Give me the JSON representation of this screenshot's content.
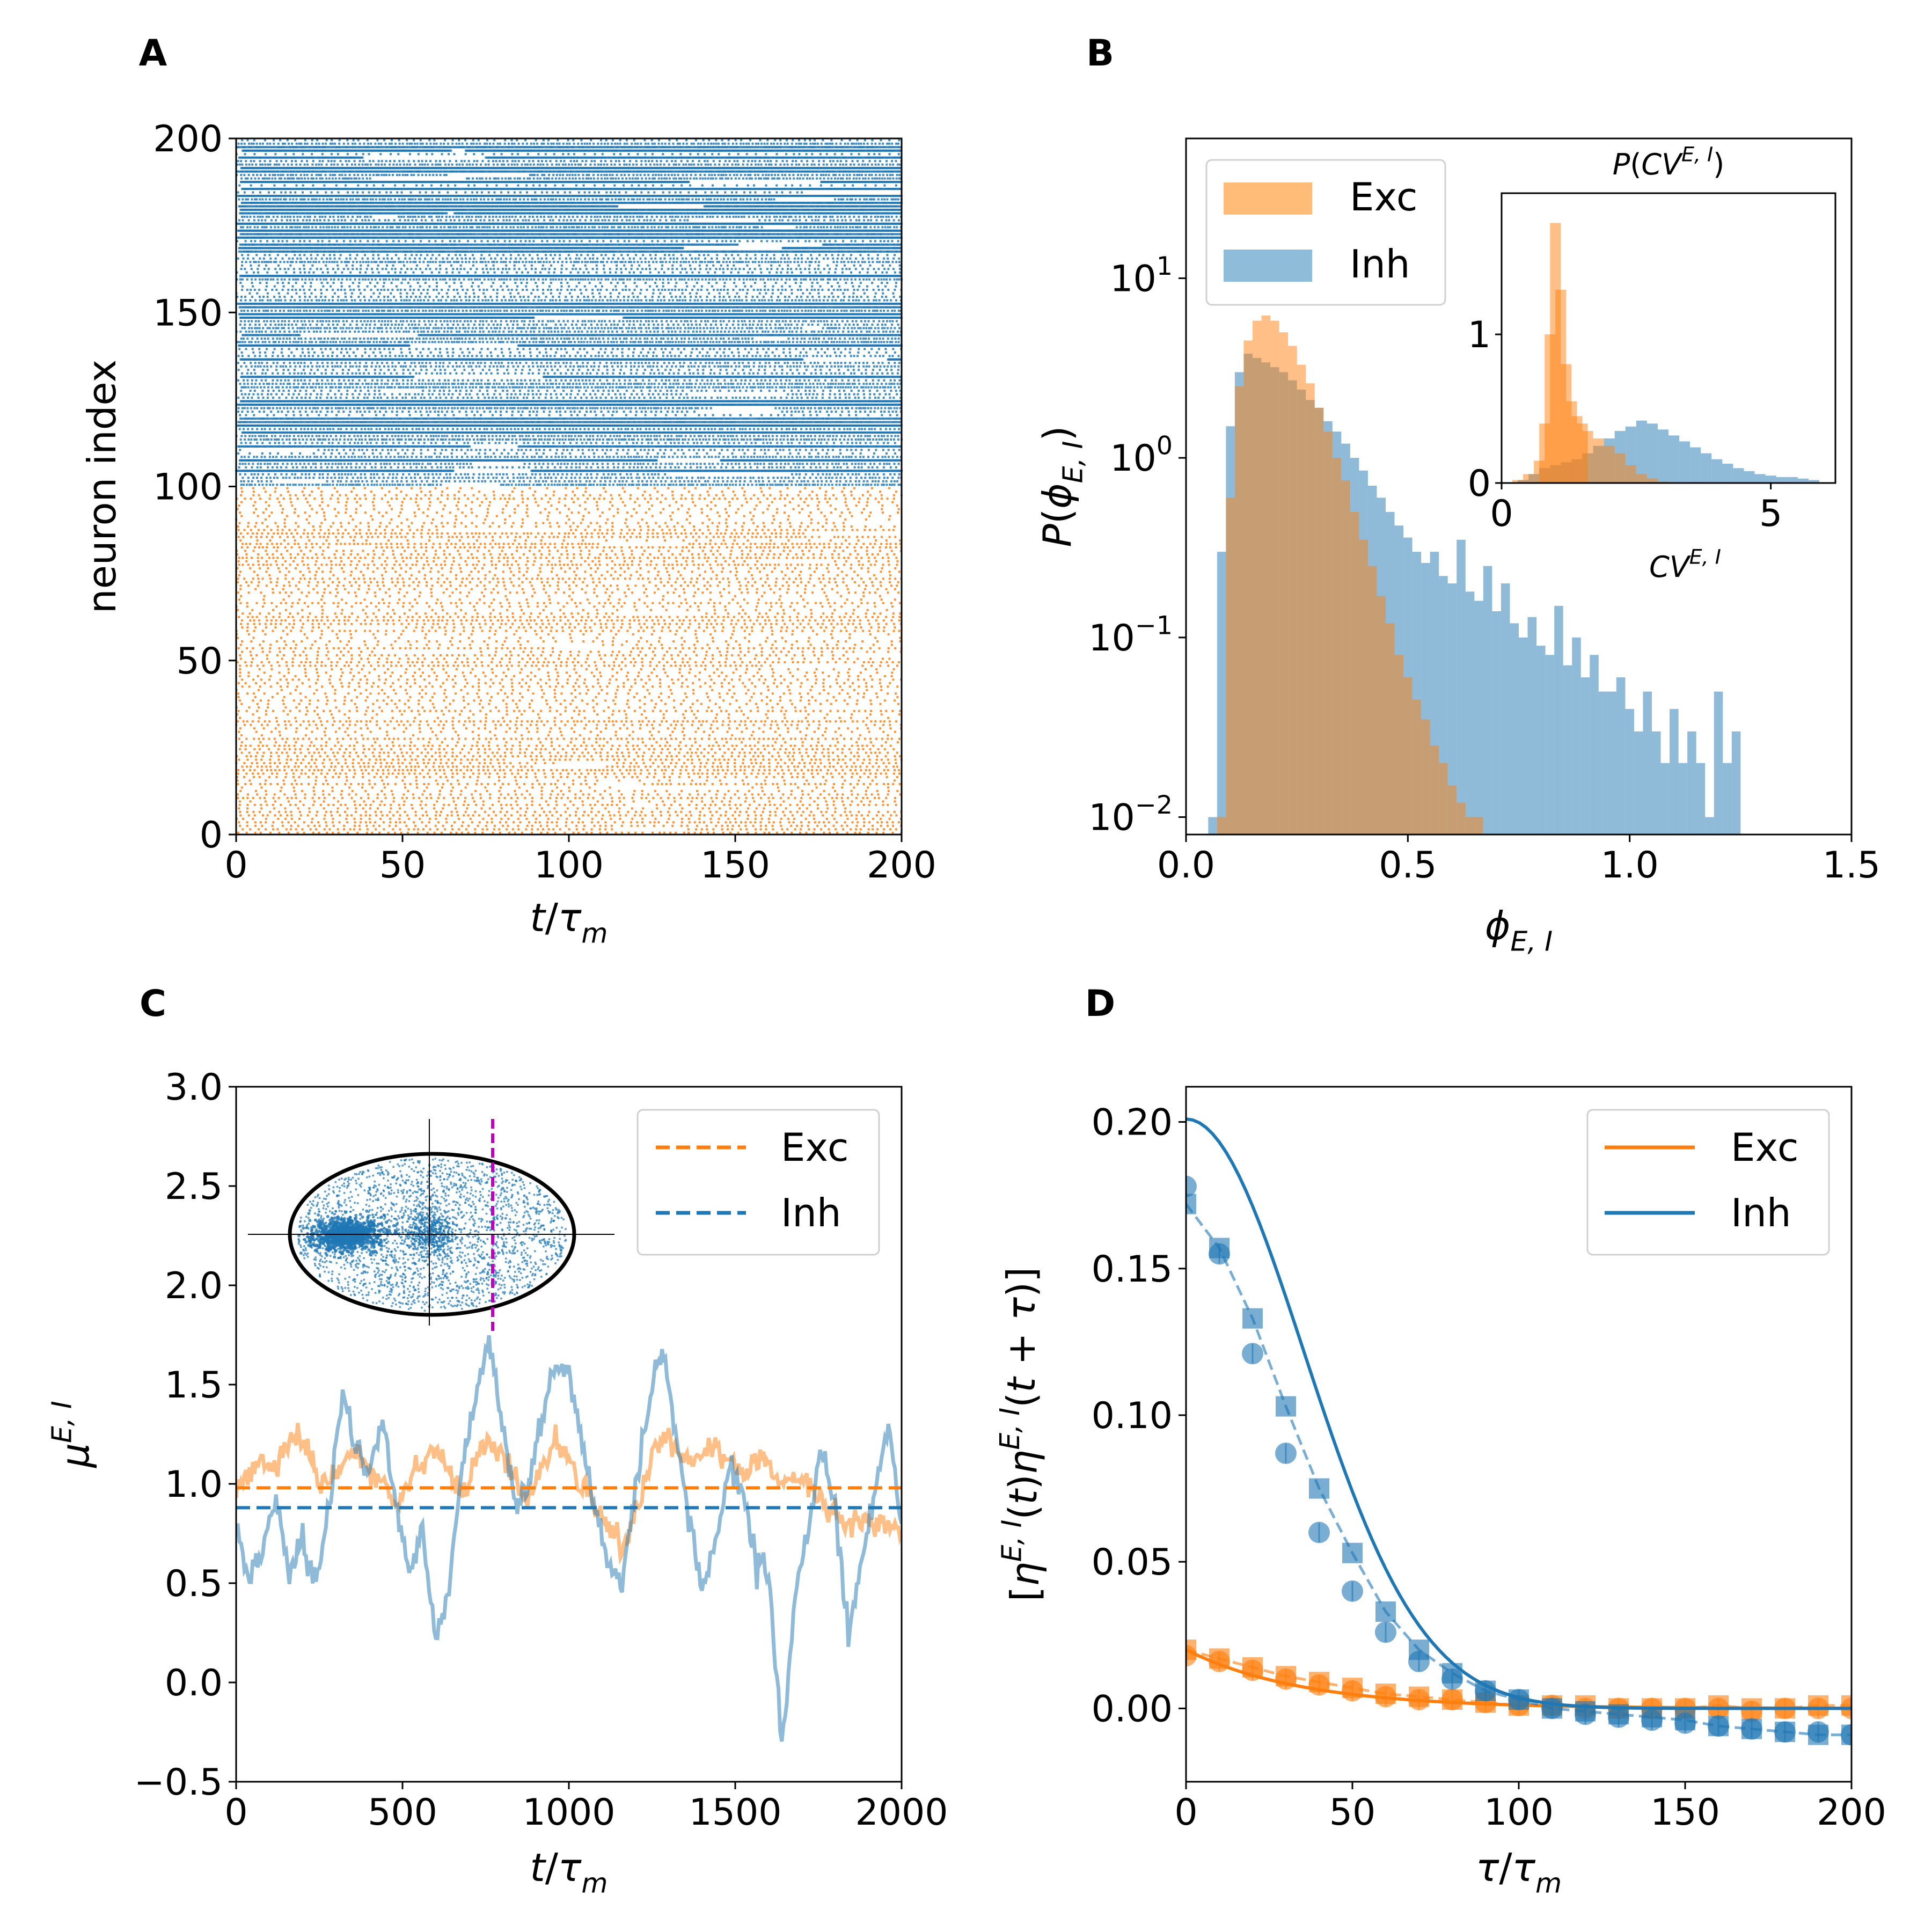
{
  "colors": {
    "exc": "#ff7f0e",
    "inh": "#1f77b4",
    "exc_light": "#ffbb78",
    "inh_light": "#8fbcd9",
    "gray": "#7f7f7f",
    "magenta": "#bf00bf"
  },
  "chart_data": [
    {
      "panel": "A",
      "type": "scatter",
      "xlabel": "t/τm",
      "ylabel": "neuron index",
      "xlim": [
        0,
        200
      ],
      "ylim": [
        0,
        200
      ],
      "xticks": [
        0,
        50,
        100,
        150,
        200
      ],
      "yticks": [
        0,
        50,
        100,
        150,
        200
      ],
      "series": [
        {
          "name": "",
          "color": "exc",
          "neuron_range": [
            0,
            99
          ]
        },
        {
          "name": "",
          "color": "inh",
          "neuron_range": [
            100,
            199
          ]
        }
      ]
    },
    {
      "panel": "B",
      "type": "bar",
      "xlabel": "ϕE,I",
      "ylabel": "P(ϕE,I)",
      "xlim": [
        0,
        1.5
      ],
      "ylim": [
        0.008,
        60
      ],
      "yscale": "log",
      "xticks": [
        "0.0",
        "0.5",
        "1.0",
        "1.5"
      ],
      "yticks": [
        {
          "value": 10,
          "base": "10",
          "exp": "1"
        },
        {
          "value": 1,
          "base": "10",
          "exp": "0"
        },
        {
          "value": 0.1,
          "base": "10",
          "exp": "−1"
        },
        {
          "value": 0.01,
          "base": "10",
          "exp": "−2"
        }
      ],
      "legend": {
        "placement": "top-left",
        "entries": [
          {
            "label": "Exc",
            "color": "exc_light"
          },
          {
            "label": "Inh",
            "color": "inh_light"
          }
        ]
      },
      "series": [
        {
          "name": "Exc",
          "x": [
            0.08,
            0.1,
            0.12,
            0.14,
            0.16,
            0.18,
            0.2,
            0.22,
            0.24,
            0.26,
            0.28,
            0.3,
            0.32,
            0.34,
            0.36,
            0.38,
            0.4,
            0.42,
            0.44,
            0.46,
            0.48,
            0.5,
            0.52,
            0.54,
            0.56,
            0.58,
            0.6,
            0.62,
            0.64,
            0.66
          ],
          "values": [
            0.01,
            0.6,
            2.5,
            4.5,
            5.8,
            6.2,
            5.8,
            5.0,
            4.2,
            3.3,
            2.6,
            1.9,
            1.4,
            1.0,
            0.75,
            0.5,
            0.35,
            0.25,
            0.17,
            0.12,
            0.08,
            0.06,
            0.045,
            0.035,
            0.025,
            0.02,
            0.015,
            0.012,
            0.01,
            0.01
          ]
        },
        {
          "name": "Inh",
          "x": [
            0.06,
            0.08,
            0.1,
            0.12,
            0.14,
            0.16,
            0.18,
            0.2,
            0.22,
            0.24,
            0.26,
            0.28,
            0.3,
            0.32,
            0.34,
            0.36,
            0.38,
            0.4,
            0.42,
            0.44,
            0.46,
            0.48,
            0.5,
            0.52,
            0.54,
            0.56,
            0.58,
            0.6,
            0.62,
            0.64,
            0.66,
            0.68,
            0.7,
            0.72,
            0.74,
            0.76,
            0.78,
            0.8,
            0.82,
            0.84,
            0.86,
            0.88,
            0.9,
            0.92,
            0.94,
            0.96,
            0.98,
            1.0,
            1.02,
            1.04,
            1.06,
            1.08,
            1.1,
            1.12,
            1.14,
            1.16,
            1.18,
            1.2,
            1.22,
            1.24
          ],
          "values": [
            0.01,
            0.3,
            1.5,
            3.0,
            3.8,
            3.6,
            3.4,
            3.2,
            3.0,
            2.7,
            2.4,
            2.1,
            1.9,
            1.6,
            1.4,
            1.2,
            1.0,
            0.85,
            0.7,
            0.6,
            0.5,
            0.42,
            0.36,
            0.3,
            0.26,
            0.3,
            0.22,
            0.2,
            0.35,
            0.18,
            0.16,
            0.25,
            0.14,
            0.2,
            0.12,
            0.1,
            0.13,
            0.09,
            0.08,
            0.15,
            0.07,
            0.1,
            0.06,
            0.08,
            0.05,
            0.05,
            0.06,
            0.04,
            0.03,
            0.05,
            0.03,
            0.02,
            0.04,
            0.02,
            0.03,
            0.02,
            0.01,
            0.05,
            0.02,
            0.03
          ]
        }
      ],
      "inset": {
        "title": "P(CVE,I)",
        "xlabel": "CVE,I",
        "xlim": [
          0,
          6.2
        ],
        "ylim": [
          0,
          1.95
        ],
        "xticks": [
          "0",
          "5"
        ],
        "yticks": [
          "0",
          "1"
        ],
        "series": [
          {
            "name": "Exc",
            "x": [
              0.3,
              0.5,
              0.7,
              0.8,
              0.9,
              1.0,
              1.1,
              1.2,
              1.3,
              1.4,
              1.5,
              1.6,
              1.8,
              2.0,
              2.2,
              2.4,
              2.6,
              2.8,
              3.0
            ],
            "values": [
              0.02,
              0.06,
              0.15,
              0.4,
              1.0,
              1.75,
              1.3,
              0.8,
              0.55,
              0.45,
              0.4,
              0.35,
              0.3,
              0.25,
              0.2,
              0.12,
              0.06,
              0.03,
              0.01
            ]
          },
          {
            "name": "Inh",
            "x": [
              0.4,
              0.6,
              0.8,
              1.0,
              1.2,
              1.4,
              1.6,
              1.8,
              2.0,
              2.2,
              2.4,
              2.6,
              2.8,
              3.0,
              3.2,
              3.4,
              3.6,
              3.8,
              4.0,
              4.2,
              4.4,
              4.6,
              4.8,
              5.0,
              5.2,
              5.4,
              5.6,
              5.8
            ],
            "values": [
              0.02,
              0.06,
              0.1,
              0.12,
              0.14,
              0.16,
              0.2,
              0.25,
              0.3,
              0.35,
              0.38,
              0.42,
              0.4,
              0.36,
              0.32,
              0.28,
              0.24,
              0.2,
              0.16,
              0.13,
              0.1,
              0.08,
              0.06,
              0.05,
              0.04,
              0.04,
              0.03,
              0.02
            ]
          }
        ]
      }
    },
    {
      "panel": "C",
      "type": "line",
      "xlabel": "t/τm",
      "ylabel": "μE,I",
      "xlim": [
        0,
        2000
      ],
      "ylim": [
        -0.5,
        3.0
      ],
      "xticks": [
        0,
        500,
        1000,
        1500,
        2000
      ],
      "yticks": [
        "−0.5",
        "0.0",
        "0.5",
        "1.0",
        "1.5",
        "2.0",
        "2.5",
        "3.0"
      ],
      "legend": {
        "placement": "top-right",
        "entries": [
          {
            "label": "Exc",
            "color": "exc"
          },
          {
            "label": "Inh",
            "color": "inh"
          }
        ]
      },
      "hlines": [
        {
          "name": "Exc",
          "y": 0.98
        },
        {
          "name": "Inh",
          "y": 0.88
        }
      ],
      "series": [
        {
          "name": "Exc",
          "x": [
            0,
            40,
            80,
            120,
            160,
            200,
            240,
            280,
            320,
            360,
            400,
            440,
            480,
            520,
            560,
            600,
            640,
            680,
            720,
            760,
            800,
            840,
            880,
            920,
            960,
            1000,
            1040,
            1080,
            1120,
            1160,
            1200,
            1240,
            1280,
            1320,
            1360,
            1400,
            1440,
            1480,
            1520,
            1560,
            1600,
            1640,
            1680,
            1720,
            1760,
            1800,
            1840,
            1880,
            1920,
            1960,
            2000
          ],
          "values": [
            0.95,
            1.05,
            1.12,
            1.08,
            1.2,
            1.25,
            1.05,
            0.98,
            1.1,
            1.18,
            1.08,
            1.0,
            0.9,
            1.05,
            1.12,
            1.18,
            1.05,
            0.95,
            1.1,
            1.22,
            1.15,
            1.0,
            0.92,
            1.1,
            1.2,
            1.15,
            1.0,
            0.88,
            0.82,
            0.65,
            0.85,
            1.1,
            1.25,
            1.2,
            1.1,
            1.15,
            1.18,
            1.1,
            1.05,
            1.12,
            1.08,
            1.0,
            1.05,
            1.0,
            0.9,
            0.85,
            0.8,
            0.82,
            0.78,
            0.8,
            0.75
          ]
        },
        {
          "name": "Inh",
          "x": [
            0,
            40,
            80,
            120,
            160,
            200,
            240,
            280,
            320,
            360,
            400,
            440,
            480,
            520,
            560,
            600,
            640,
            680,
            720,
            760,
            800,
            840,
            880,
            920,
            960,
            1000,
            1040,
            1080,
            1120,
            1160,
            1200,
            1240,
            1280,
            1320,
            1360,
            1400,
            1440,
            1480,
            1520,
            1560,
            1600,
            1640,
            1680,
            1720,
            1760,
            1800,
            1840,
            1880,
            1920,
            1960,
            2000
          ],
          "values": [
            0.8,
            0.5,
            0.65,
            0.95,
            0.55,
            0.7,
            0.5,
            0.9,
            1.45,
            1.2,
            1.05,
            1.3,
            0.9,
            0.55,
            0.8,
            0.2,
            0.5,
            1.1,
            1.45,
            1.72,
            1.3,
            0.9,
            1.0,
            1.35,
            1.6,
            1.55,
            1.2,
            0.85,
            0.6,
            0.5,
            0.95,
            1.4,
            1.68,
            1.25,
            0.85,
            0.45,
            0.7,
            1.1,
            0.95,
            0.65,
            0.55,
            -0.3,
            0.4,
            0.8,
            1.2,
            0.85,
            0.25,
            0.6,
            1.0,
            1.3,
            0.8
          ]
        }
      ],
      "inset": {
        "type": "scatter",
        "description_marker_x": 780
      }
    },
    {
      "panel": "D",
      "type": "line",
      "xlabel": "τ/τm",
      "ylabel": "[ηE,I(t)ηE,I(t+τ)]",
      "xlim": [
        0,
        200
      ],
      "ylim": [
        -0.025,
        0.212
      ],
      "xticks": [
        0,
        50,
        100,
        150,
        200
      ],
      "yticks": [
        "0.00",
        "0.05",
        "0.10",
        "0.15",
        "0.20"
      ],
      "legend": {
        "placement": "top-right",
        "entries": [
          {
            "label": "Exc",
            "color": "exc"
          },
          {
            "label": "Inh",
            "color": "inh"
          }
        ]
      },
      "series": [
        {
          "name": "Exc",
          "x": [
            0,
            10,
            20,
            30,
            40,
            50,
            60,
            70,
            80,
            90,
            100,
            110,
            120,
            130,
            140,
            150,
            160,
            170,
            180,
            190,
            200
          ],
          "fit": [
            0.02,
            0.017,
            0.014,
            0.011,
            0.009,
            0.007,
            0.005,
            0.004,
            0.003,
            0.002,
            0.001,
            0.0008,
            0.0005,
            0.0003,
            0.0002,
            0.0001,
            0,
            0,
            0,
            0,
            0
          ],
          "circles": [
            0.018,
            0.016,
            0.013,
            0.01,
            0.008,
            0.006,
            0.004,
            0.003,
            0.003,
            0.002,
            0.001,
            0.001,
            0.0,
            0.0,
            0.0,
            0.0,
            0.0,
            -0.001,
            0.0,
            0.0,
            0.0
          ],
          "squares": [
            0.02,
            0.017,
            0.014,
            0.011,
            0.009,
            0.007,
            0.005,
            0.004,
            0.003,
            0.002,
            0.001,
            0.001,
            0.001,
            0.0,
            0.0,
            0.0,
            0.001,
            0.0,
            0.0,
            0.001,
            0.001
          ]
        },
        {
          "name": "Inh",
          "x": [
            0,
            10,
            20,
            30,
            40,
            50,
            60,
            70,
            80,
            90,
            100,
            110,
            120,
            130,
            140,
            150,
            160,
            170,
            180,
            190,
            200
          ],
          "fit": [
            0.2,
            0.18,
            0.14,
            0.1,
            0.068,
            0.042,
            0.025,
            0.013,
            0.007,
            0.003,
            0.001,
            0.0,
            -0.001,
            -0.001,
            -0.001,
            -0.001,
            -0.001,
            -0.001,
            -0.001,
            -0.001,
            -0.001
          ],
          "circles": [
            0.178,
            0.155,
            0.121,
            0.087,
            0.06,
            0.04,
            0.026,
            0.016,
            0.01,
            0.006,
            0.003,
            0.0,
            -0.002,
            -0.003,
            -0.004,
            -0.005,
            -0.006,
            -0.007,
            -0.008,
            -0.008,
            -0.009
          ],
          "squares": [
            0.172,
            0.157,
            0.133,
            0.103,
            0.075,
            0.053,
            0.033,
            0.02,
            0.012,
            0.006,
            0.003,
            0.0,
            -0.001,
            -0.002,
            -0.003,
            -0.004,
            -0.006,
            -0.007,
            -0.008,
            -0.009,
            -0.009
          ]
        }
      ]
    }
  ],
  "panel_labels": [
    "A",
    "B",
    "C",
    "D"
  ]
}
